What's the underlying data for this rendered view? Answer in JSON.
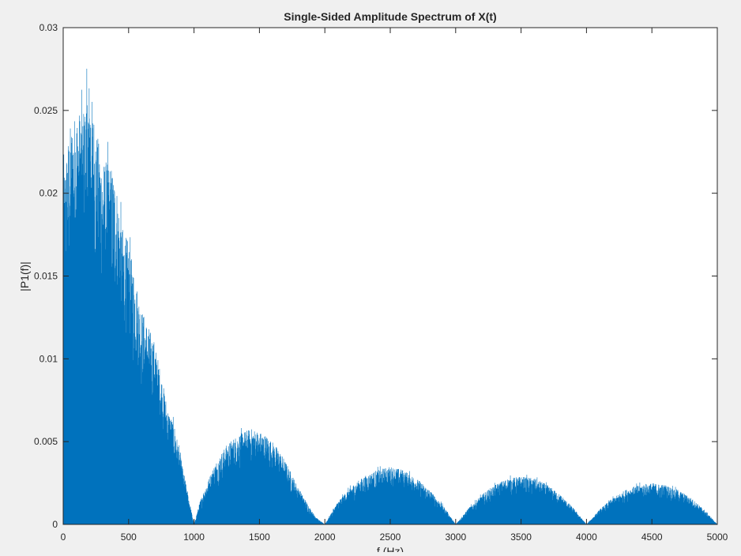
{
  "chart_data": {
    "type": "line",
    "title": "Single-Sided Amplitude Spectrum of X(t)",
    "xlabel": "f (Hz)",
    "ylabel": "|P1(f)|",
    "xlim": [
      0,
      5000
    ],
    "ylim": [
      0,
      0.03
    ],
    "xticks": [
      0,
      500,
      1000,
      1500,
      2000,
      2500,
      3000,
      3500,
      4000,
      4500,
      5000
    ],
    "xtick_labels": [
      "0",
      "500",
      "1000",
      "1500",
      "2000",
      "2500",
      "3000",
      "3500",
      "4000",
      "4500",
      "5000"
    ],
    "yticks": [
      0,
      0.005,
      0.01,
      0.015,
      0.02,
      0.025,
      0.03
    ],
    "ytick_labels": [
      "0",
      "0.005",
      "0.01",
      "0.015",
      "0.02",
      "0.025",
      "0.03"
    ],
    "grid": false,
    "line_color": "#0072bd",
    "series": [
      {
        "envelope": {
          "x": [
            0,
            50,
            100,
            150,
            200,
            250,
            300,
            350,
            400,
            450,
            500,
            550,
            600,
            650,
            700,
            750,
            800,
            850,
            900,
            950,
            1000,
            1050,
            1100,
            1150,
            1200,
            1250,
            1300,
            1350,
            1400,
            1450,
            1500,
            1550,
            1600,
            1650,
            1700,
            1750,
            1800,
            1850,
            1900,
            1950,
            2000,
            2100,
            2200,
            2300,
            2400,
            2500,
            2600,
            2700,
            2800,
            2900,
            3000,
            3100,
            3200,
            3300,
            3400,
            3500,
            3600,
            3700,
            3800,
            3900,
            4000,
            4100,
            4200,
            4300,
            4400,
            4500,
            4600,
            4700,
            4800,
            4900,
            5000
          ],
          "y": [
            0.021,
            0.024,
            0.025,
            0.025,
            0.027,
            0.024,
            0.022,
            0.022,
            0.021,
            0.018,
            0.017,
            0.015,
            0.013,
            0.012,
            0.011,
            0.009,
            0.007,
            0.006,
            0.004,
            0.002,
            0.0,
            0.0015,
            0.0025,
            0.0035,
            0.0042,
            0.0048,
            0.0052,
            0.0055,
            0.0057,
            0.0058,
            0.0056,
            0.0054,
            0.005,
            0.0045,
            0.0038,
            0.003,
            0.0022,
            0.0015,
            0.0008,
            0.0003,
            0.0,
            0.0014,
            0.0023,
            0.0029,
            0.0033,
            0.0035,
            0.0033,
            0.0028,
            0.0021,
            0.0012,
            0.0,
            0.001,
            0.0018,
            0.0024,
            0.0028,
            0.0029,
            0.0028,
            0.0024,
            0.0018,
            0.001,
            0.0,
            0.0009,
            0.0016,
            0.0021,
            0.0024,
            0.0025,
            0.0024,
            0.0021,
            0.0016,
            0.0009,
            0.0
          ]
        }
      }
    ]
  }
}
